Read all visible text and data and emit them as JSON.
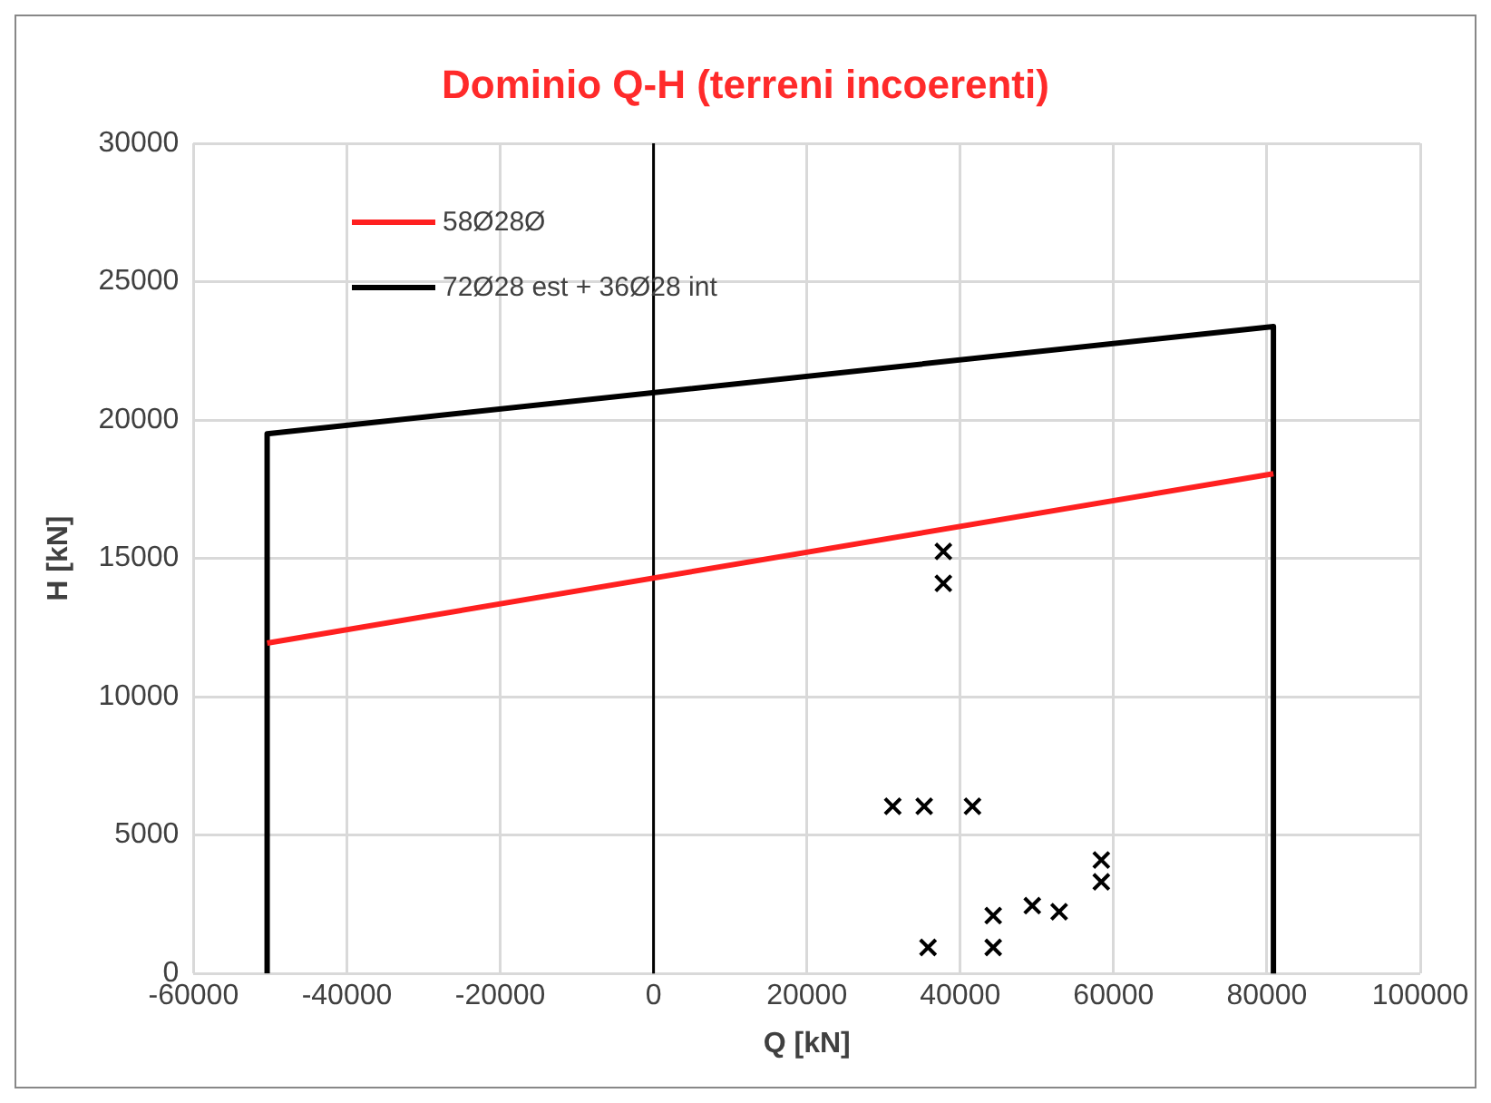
{
  "chart_data": {
    "type": "scatter",
    "title": "Dominio Q-H (terreni incoerenti)",
    "xlabel": "Q [kN]",
    "ylabel": "H [kN]",
    "xlim": [
      -60000,
      100000
    ],
    "xticks": [
      -60000,
      -40000,
      -20000,
      0,
      20000,
      40000,
      60000,
      80000,
      100000
    ],
    "ylim": [
      0,
      30000
    ],
    "yticks": [
      0,
      5000,
      10000,
      15000,
      20000,
      25000,
      30000
    ],
    "grid": true,
    "legend": "top left",
    "ref_lines": [
      {
        "axis": "x",
        "value": 0,
        "color": "#000000"
      }
    ],
    "series": [
      {
        "type": "line",
        "name": "58Ø28Ø",
        "color": "#ff2020",
        "x": [
          -50400,
          80850
        ],
        "values": [
          11940,
          18060
        ],
        "marker": "none"
      },
      {
        "type": "line",
        "name": "72Ø28 est + 36Ø28 int",
        "color": "#000000",
        "x": [
          -50400,
          -50400,
          80850,
          80850
        ],
        "values": [
          0,
          19500,
          23380,
          0
        ],
        "marker": "none"
      },
      {
        "type": "scatter",
        "color": "#000000",
        "marker": "cross",
        "x": [
          37800,
          37800,
          31200,
          35300,
          41600,
          35800,
          44300,
          44300,
          49400,
          52900,
          58400,
          58400
        ],
        "values": [
          15250,
          14100,
          6040,
          6040,
          6040,
          940,
          2090,
          940,
          2450,
          2230,
          4100,
          3310
        ]
      }
    ]
  }
}
